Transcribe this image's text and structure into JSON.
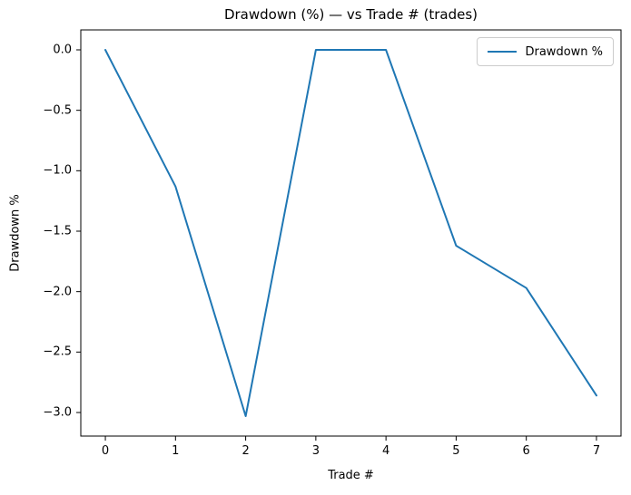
{
  "title": "Drawdown (%) — vs Trade # (trades)",
  "legend": {
    "label": "Drawdown %",
    "line_color": "#1f77b4"
  },
  "axes": {
    "xlabel": "Trade #",
    "ylabel": "Drawdown %",
    "xtick_labels": [
      "0",
      "1",
      "2",
      "3",
      "4",
      "5",
      "6",
      "7"
    ],
    "ytick_labels": [
      "0.0",
      "−0.5",
      "−1.0",
      "−1.5",
      "−2.0",
      "−2.5",
      "−3.0"
    ]
  },
  "chart_data": {
    "type": "line",
    "title": "Drawdown (%) — vs Trade # (trades)",
    "xlabel": "Trade #",
    "ylabel": "Drawdown %",
    "x": [
      0,
      1,
      2,
      3,
      4,
      5,
      6,
      7
    ],
    "series": [
      {
        "name": "Drawdown %",
        "values": [
          0.0,
          -1.13,
          -3.03,
          0.0,
          0.0,
          -1.62,
          -1.97,
          -2.86
        ],
        "color": "#1f77b4"
      }
    ],
    "xticks": [
      0,
      1,
      2,
      3,
      4,
      5,
      6,
      7
    ],
    "yticks": [
      0.0,
      -0.5,
      -1.0,
      -1.5,
      -2.0,
      -2.5,
      -3.0
    ],
    "xlim": [
      -0.35,
      7.35
    ],
    "ylim": [
      -3.195,
      0.165
    ],
    "grid": false,
    "legend_position": "upper right",
    "axis_color": "#000000",
    "background": "#ffffff"
  }
}
